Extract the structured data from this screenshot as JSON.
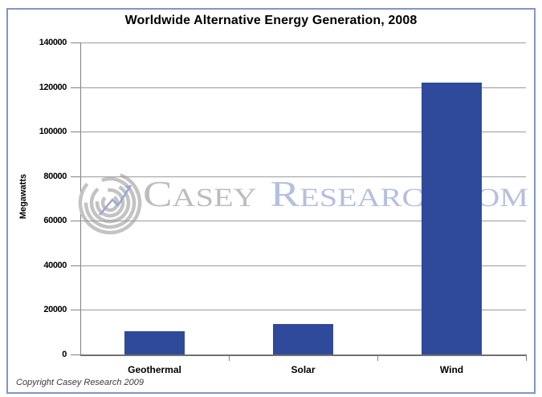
{
  "title": "Worldwide Alternative Energy Generation, 2008",
  "watermark": {
    "initial1": "C",
    "part1": "ASEY",
    "initial2": "R",
    "part2": "ESEARCH.COM"
  },
  "footer": {
    "copyright": "Copyright Casey Research 2009"
  },
  "chart_data": {
    "type": "bar",
    "title": "Worldwide Alternative Energy Generation, 2008",
    "categories": [
      "Geothermal",
      "Solar",
      "Wind"
    ],
    "values": [
      10500,
      13500,
      122000
    ],
    "xlabel": "",
    "ylabel": "Megawatts",
    "ylim": [
      0,
      140000
    ],
    "yticks": [
      0,
      20000,
      40000,
      60000,
      80000,
      100000,
      120000,
      140000
    ],
    "grid": "horizontal",
    "legend_position": "none"
  },
  "colors": {
    "bar": "#2f4a9b",
    "gridline": "#9a9a9a",
    "axis": "#808080",
    "frame_border": "#8095c8",
    "watermark_spiral": "#c3c3c3",
    "watermark_text_gray": "#bdbdbd",
    "watermark_text_blue": "#b5bfdf",
    "watermark_arrow": "#9aa7d6"
  }
}
